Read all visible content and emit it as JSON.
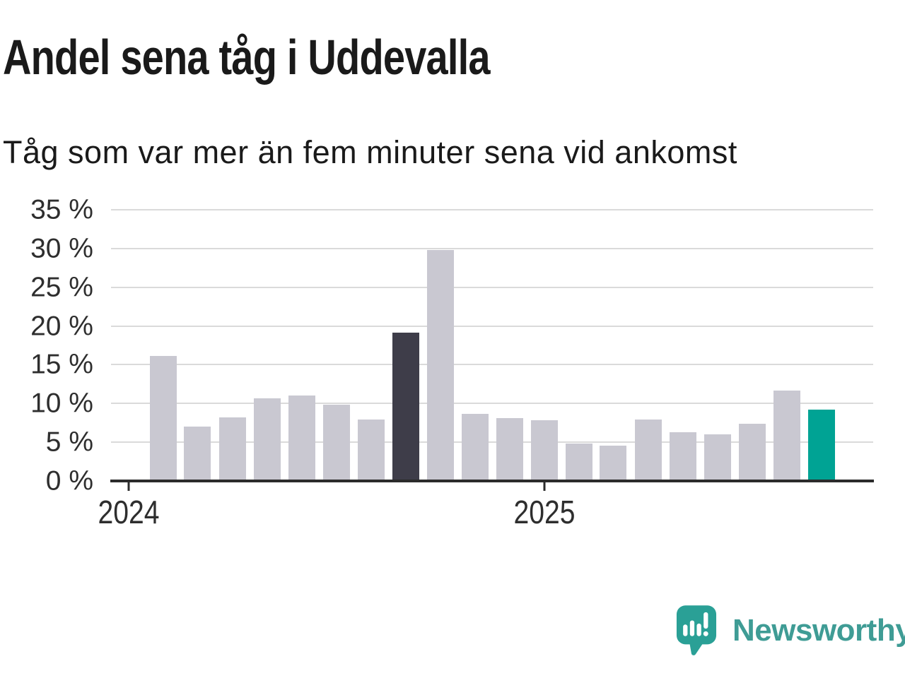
{
  "title": "Andel sena tåg i Uddevalla",
  "subtitle": "Tåg som var mer än fem minuter sena vid ankomst",
  "branding": {
    "logo_text": "Newsworthy"
  },
  "colors": {
    "bar_default": "#c9c8d1",
    "bar_dark": "#3e3d49",
    "bar_accent": "#00a394",
    "gridline": "#dadada",
    "axis_line": "#2b2b2b",
    "axis_text": "#2e2e2e",
    "heading_text": "#1a1a1a",
    "brand_text": "#3f9c95",
    "brand_bubble": "#2aa096"
  },
  "chart_data": {
    "type": "bar",
    "title": "Andel sena tåg i Uddevalla",
    "subtitle": "Tåg som var mer än fem minuter sena vid ankomst",
    "unit": "%",
    "values": [
      16.1,
      7.0,
      8.2,
      10.7,
      11.0,
      9.8,
      7.9,
      19.1,
      29.8,
      8.7,
      8.1,
      7.8,
      4.8,
      4.6,
      7.9,
      6.3,
      6.0,
      7.4,
      11.7,
      9.2
    ],
    "highlight_dark_index": 7,
    "highlight_accent_index": 19,
    "ylim": [
      0,
      35
    ],
    "y_ticks": [
      {
        "value": 35,
        "label": "35 %"
      },
      {
        "value": 30,
        "label": "30 %"
      },
      {
        "value": 25,
        "label": "25 %"
      },
      {
        "value": 20,
        "label": "20 %"
      },
      {
        "value": 15,
        "label": "15 %"
      },
      {
        "value": 10,
        "label": "10 %"
      },
      {
        "value": 5,
        "label": "5 %"
      },
      {
        "value": 0,
        "label": "0 %"
      }
    ],
    "x_ticks": [
      {
        "label": "2024",
        "slot": 0
      },
      {
        "label": "2025",
        "slot": 12
      }
    ],
    "n_slots": 22,
    "grid": true,
    "legend": false
  }
}
